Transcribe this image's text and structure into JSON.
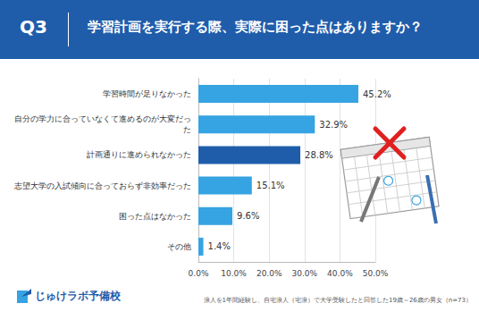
{
  "header": {
    "label": "Q3",
    "title": "学習計画を実行する際、実際に困った点はありますか？"
  },
  "chart_data": {
    "type": "bar",
    "orientation": "horizontal",
    "categories": [
      "学習時間が足りなかった",
      "自分の学力に合っていなくて進めるのが大変だった",
      "計画通りに進められなかった",
      "志望大学の入試傾向に合っておらず非効率だった",
      "困った点はなかった",
      "その他"
    ],
    "values": [
      45.2,
      32.9,
      28.8,
      15.1,
      9.6,
      1.4
    ],
    "value_labels": [
      "45.2%",
      "32.9%",
      "28.8%",
      "15.1%",
      "9.6%",
      "1.4%"
    ],
    "colors": [
      "#36a3e2",
      "#36a3e2",
      "#1f5dab",
      "#36a3e2",
      "#36a3e2",
      "#36a3e2"
    ],
    "xlim": [
      0,
      50
    ],
    "xticks": [
      {
        "value": 0,
        "label": "0.0%"
      },
      {
        "value": 10,
        "label": "10.0%"
      },
      {
        "value": 20,
        "label": "20.0%"
      },
      {
        "value": 30,
        "label": "30.0%"
      },
      {
        "value": 40,
        "label": "40.0%"
      },
      {
        "value": 50,
        "label": "50.0%"
      }
    ],
    "grid": true,
    "data_labels": true
  },
  "footer": {
    "logo": "じゅけラボ予備校",
    "note": "浪人を1年間経験し、自宅浪人（宅浪）で大学受験したと回答した19歳～26歳の男女（n=73）"
  }
}
